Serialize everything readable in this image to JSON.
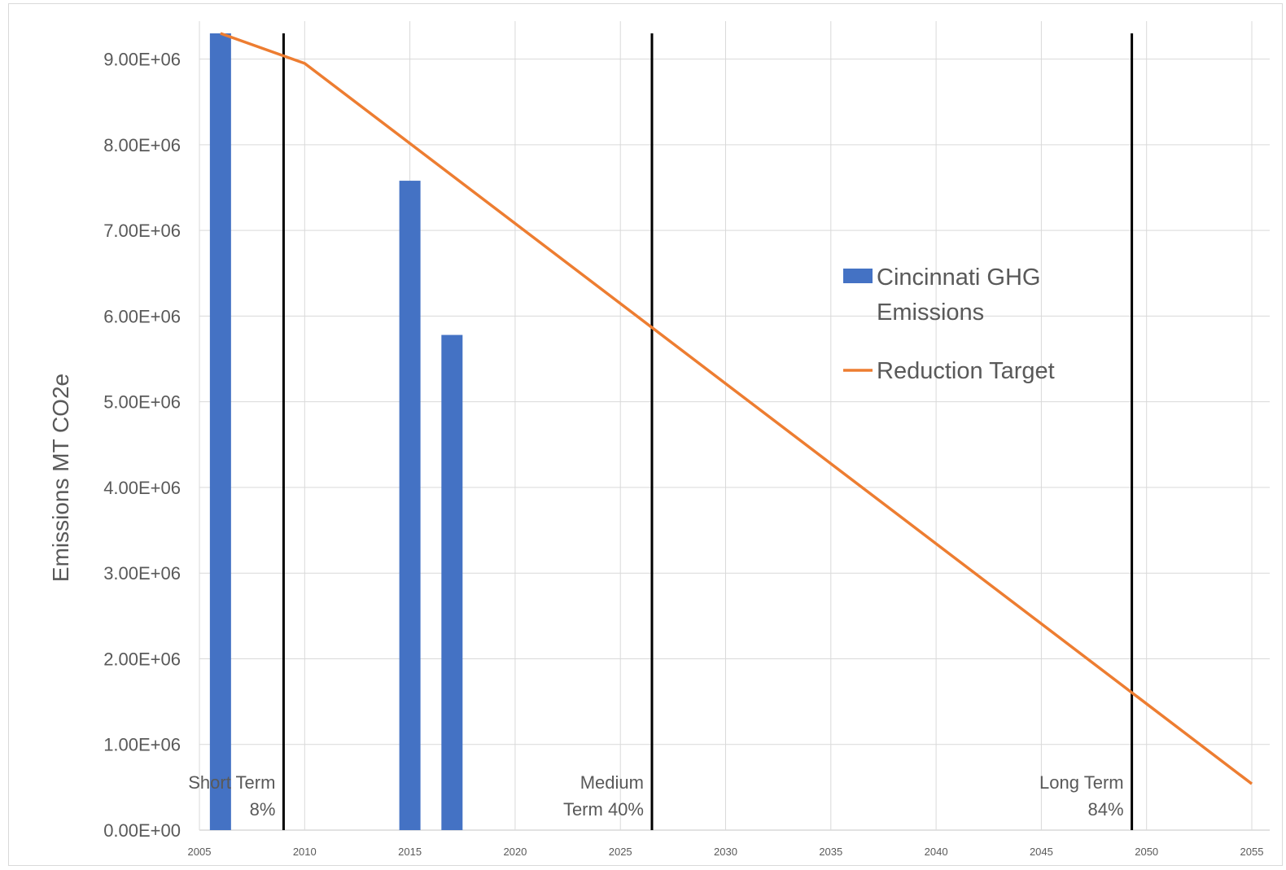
{
  "chart_data": {
    "type": "bar",
    "title": "",
    "xlabel": "",
    "ylabel": "Emissions MT CO2e",
    "xlim": [
      2005,
      2055
    ],
    "ylim": [
      0,
      9300000
    ],
    "x_ticks": [
      2005,
      2010,
      2015,
      2020,
      2025,
      2030,
      2035,
      2040,
      2045,
      2050,
      2055
    ],
    "x_tick_labels": [
      "2005",
      "2010",
      "2015",
      "2020",
      "2025",
      "2030",
      "2035",
      "2040",
      "2045",
      "2050",
      "2055"
    ],
    "y_ticks": [
      0,
      1000000,
      2000000,
      3000000,
      4000000,
      5000000,
      6000000,
      7000000,
      8000000,
      9000000
    ],
    "y_tick_labels": [
      "0.00E+00",
      "1.00E+06",
      "2.00E+06",
      "3.00E+06",
      "4.00E+06",
      "5.00E+06",
      "6.00E+06",
      "7.00E+06",
      "8.00E+06",
      "9.00E+06"
    ],
    "grid": true,
    "legend_position": "right",
    "series": [
      {
        "name": "Cincinnati GHG Emissions",
        "type": "bar",
        "color": "#4472C4",
        "x": [
          2006,
          2015,
          2017
        ],
        "values": [
          9300000,
          7580000,
          5780000
        ]
      },
      {
        "name": "Reduction Target",
        "type": "line",
        "color": "#ED7D31",
        "x": [
          2006,
          2010,
          2055
        ],
        "values": [
          9300000,
          8950000,
          540000
        ]
      }
    ],
    "markers": [
      {
        "x": 2009,
        "label_lines": [
          "Short Term",
          "8%"
        ]
      },
      {
        "x": 2026.5,
        "label_lines": [
          "Medium",
          "Term 40%"
        ]
      },
      {
        "x": 2049.3,
        "label_lines": [
          "Long Term",
          "84%"
        ]
      }
    ]
  }
}
